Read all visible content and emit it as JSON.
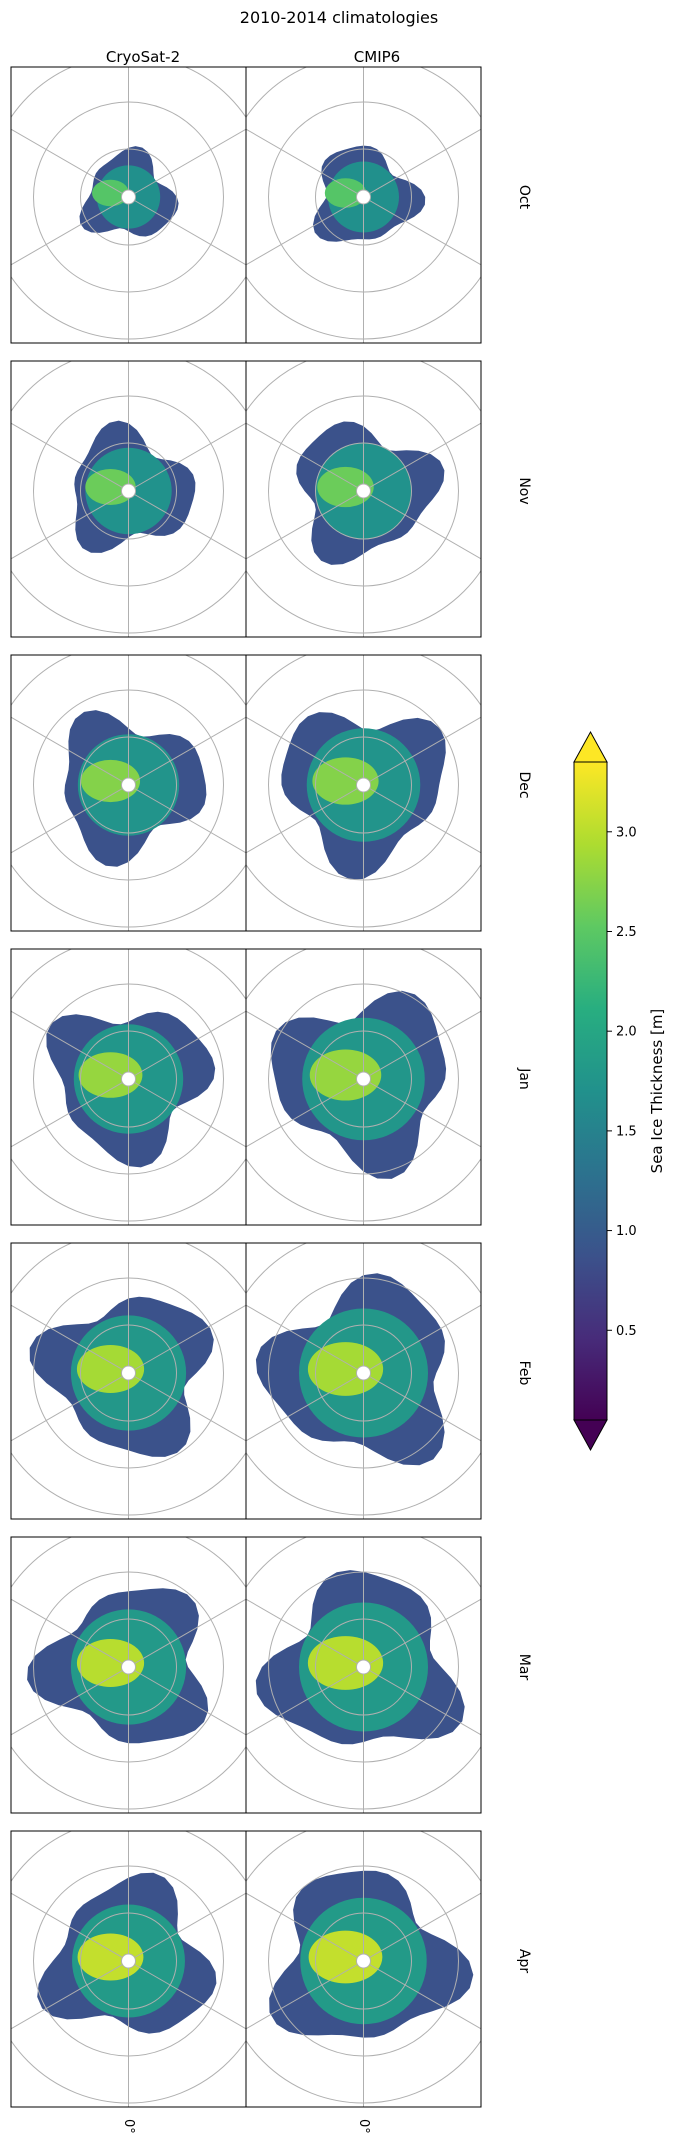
{
  "chart_data": {
    "type": "heatmap",
    "title": "2010-2014 climatologies",
    "projection": "north-polar-stereographic",
    "columns": [
      "CryoSat-2",
      "CMIP6"
    ],
    "rows": [
      "Oct",
      "Nov",
      "Dec",
      "Jan",
      "Feb",
      "Mar",
      "Apr"
    ],
    "bottom_tick_label": "0°",
    "colorbar": {
      "label": "Sea Ice Thickness [m]",
      "colormap": "viridis",
      "range": [
        0.05,
        3.35
      ],
      "ticks": [
        0.5,
        1.0,
        1.5,
        2.0,
        2.5,
        3.0
      ],
      "tick_labels": [
        "0.5",
        "1.0",
        "1.5",
        "2.0",
        "2.5",
        "3.0"
      ],
      "extend": "both"
    },
    "grid": true,
    "colors": {
      "low": "#440154",
      "mid": "#21918c",
      "high": "#fde725"
    }
  }
}
